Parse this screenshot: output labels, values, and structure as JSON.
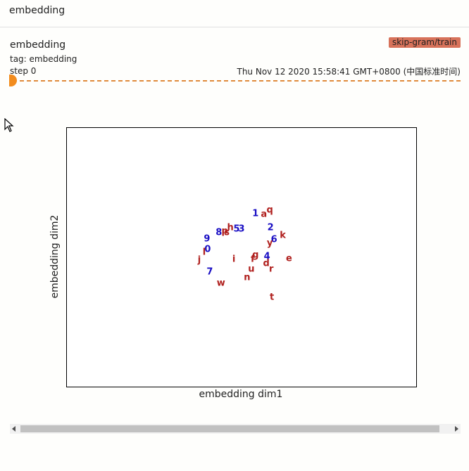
{
  "header": {
    "title": "embedding"
  },
  "card": {
    "title": "embedding",
    "tag": "tag: embedding",
    "step": "step 0",
    "run": "skip-gram/train",
    "timestamp": "Thu Nov 12 2020 15:58:41 GMT+0800 (中国标准时间)"
  },
  "colors": {
    "blue": "#1a0fc4",
    "red": "#b0201e",
    "accent": "#f28c1e",
    "run_badge": "#d7725a"
  },
  "chart_data": {
    "type": "scatter",
    "xlabel": "embedding dim1",
    "ylabel": "embedding dim2",
    "grid": false,
    "xlim": [
      0,
      100
    ],
    "ylim": [
      0,
      100
    ],
    "series": [
      {
        "values": [
          {
            "label": "1",
            "x": 54.0,
            "y": 66.8
          },
          {
            "label": "2",
            "x": 58.3,
            "y": 61.4
          },
          {
            "label": "3",
            "x": 50.0,
            "y": 60.9
          },
          {
            "label": "4",
            "x": 57.3,
            "y": 50.3
          },
          {
            "label": "5",
            "x": 48.6,
            "y": 60.9
          },
          {
            "label": "6",
            "x": 59.3,
            "y": 56.8
          },
          {
            "label": "7",
            "x": 40.9,
            "y": 44.3
          },
          {
            "label": "8",
            "x": 43.5,
            "y": 59.5
          },
          {
            "label": "9",
            "x": 40.1,
            "y": 57.1
          },
          {
            "label": "0",
            "x": 40.3,
            "y": 53.0
          }
        ]
      },
      {
        "values": [
          {
            "label": "a",
            "x": 56.4,
            "y": 66.6
          },
          {
            "label": "q",
            "x": 58.1,
            "y": 68.2
          },
          {
            "label": "k",
            "x": 61.8,
            "y": 58.4
          },
          {
            "label": "y",
            "x": 58.1,
            "y": 55.4
          },
          {
            "label": "e",
            "x": 63.6,
            "y": 49.5
          },
          {
            "label": "g",
            "x": 54.0,
            "y": 50.8
          },
          {
            "label": "f",
            "x": 53.2,
            "y": 49.2
          },
          {
            "label": "d",
            "x": 57.1,
            "y": 47.6
          },
          {
            "label": "r",
            "x": 58.5,
            "y": 45.4
          },
          {
            "label": "u",
            "x": 52.8,
            "y": 45.4
          },
          {
            "label": "n",
            "x": 51.6,
            "y": 42.2
          },
          {
            "label": "w",
            "x": 44.1,
            "y": 40.0
          },
          {
            "label": "t",
            "x": 58.7,
            "y": 34.6
          },
          {
            "label": "i",
            "x": 47.8,
            "y": 49.2
          },
          {
            "label": "j",
            "x": 37.9,
            "y": 48.9
          },
          {
            "label": "l",
            "x": 39.3,
            "y": 51.9
          },
          {
            "label": "p",
            "x": 45.2,
            "y": 60.0
          },
          {
            "label": "h",
            "x": 46.8,
            "y": 61.4
          },
          {
            "label": "s",
            "x": 45.8,
            "y": 59.5
          }
        ]
      }
    ]
  }
}
